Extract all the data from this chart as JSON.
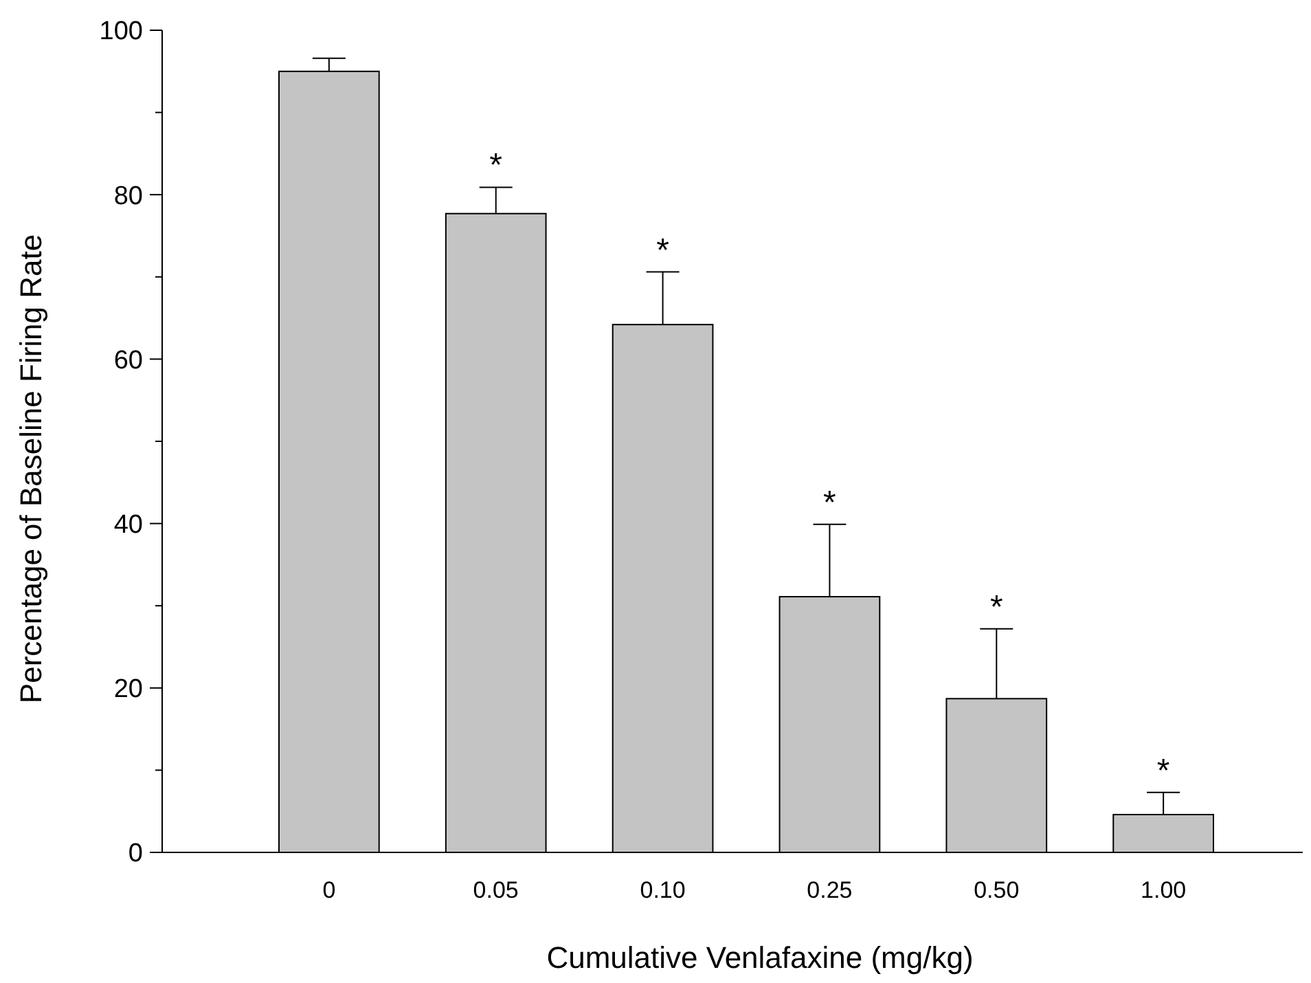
{
  "chart_data": {
    "type": "bar",
    "xlabel": "Cumulative Venlafaxine (mg/kg)",
    "ylabel": "Percentage of Baseline Firing Rate",
    "categories": [
      "0",
      "0.05",
      "0.10",
      "0.25",
      "0.50",
      "1.00"
    ],
    "values": [
      95,
      77.7,
      64.2,
      31.1,
      18.7,
      4.6
    ],
    "errors": [
      [
        95,
        96.6
      ],
      [
        77.7,
        80.9
      ],
      [
        64.2,
        70.6
      ],
      [
        31.1,
        39.9
      ],
      [
        18.7,
        27.2
      ],
      [
        4.6,
        7.3
      ]
    ],
    "color": "#c4c4c4",
    "ylim": [
      0,
      100
    ],
    "yticks": [
      0,
      {
        "value": 10,
        "label": null
      },
      20,
      {
        "value": 30,
        "label": null
      },
      40,
      {
        "value": 50,
        "label": null
      },
      60,
      {
        "value": 70,
        "label": null
      },
      80,
      {
        "value": 90,
        "label": null
      },
      100
    ],
    "annotations": [
      {
        "text": "*",
        "x": "0.05",
        "y": 80.9
      },
      {
        "text": "*",
        "x": "0.10",
        "y": 70.6
      },
      {
        "text": "*",
        "x": "0.25",
        "y": 39.9
      },
      {
        "text": "*",
        "x": "0.50",
        "y": 27.2
      },
      {
        "text": "*",
        "x": "1.00",
        "y": 7.3
      }
    ]
  }
}
